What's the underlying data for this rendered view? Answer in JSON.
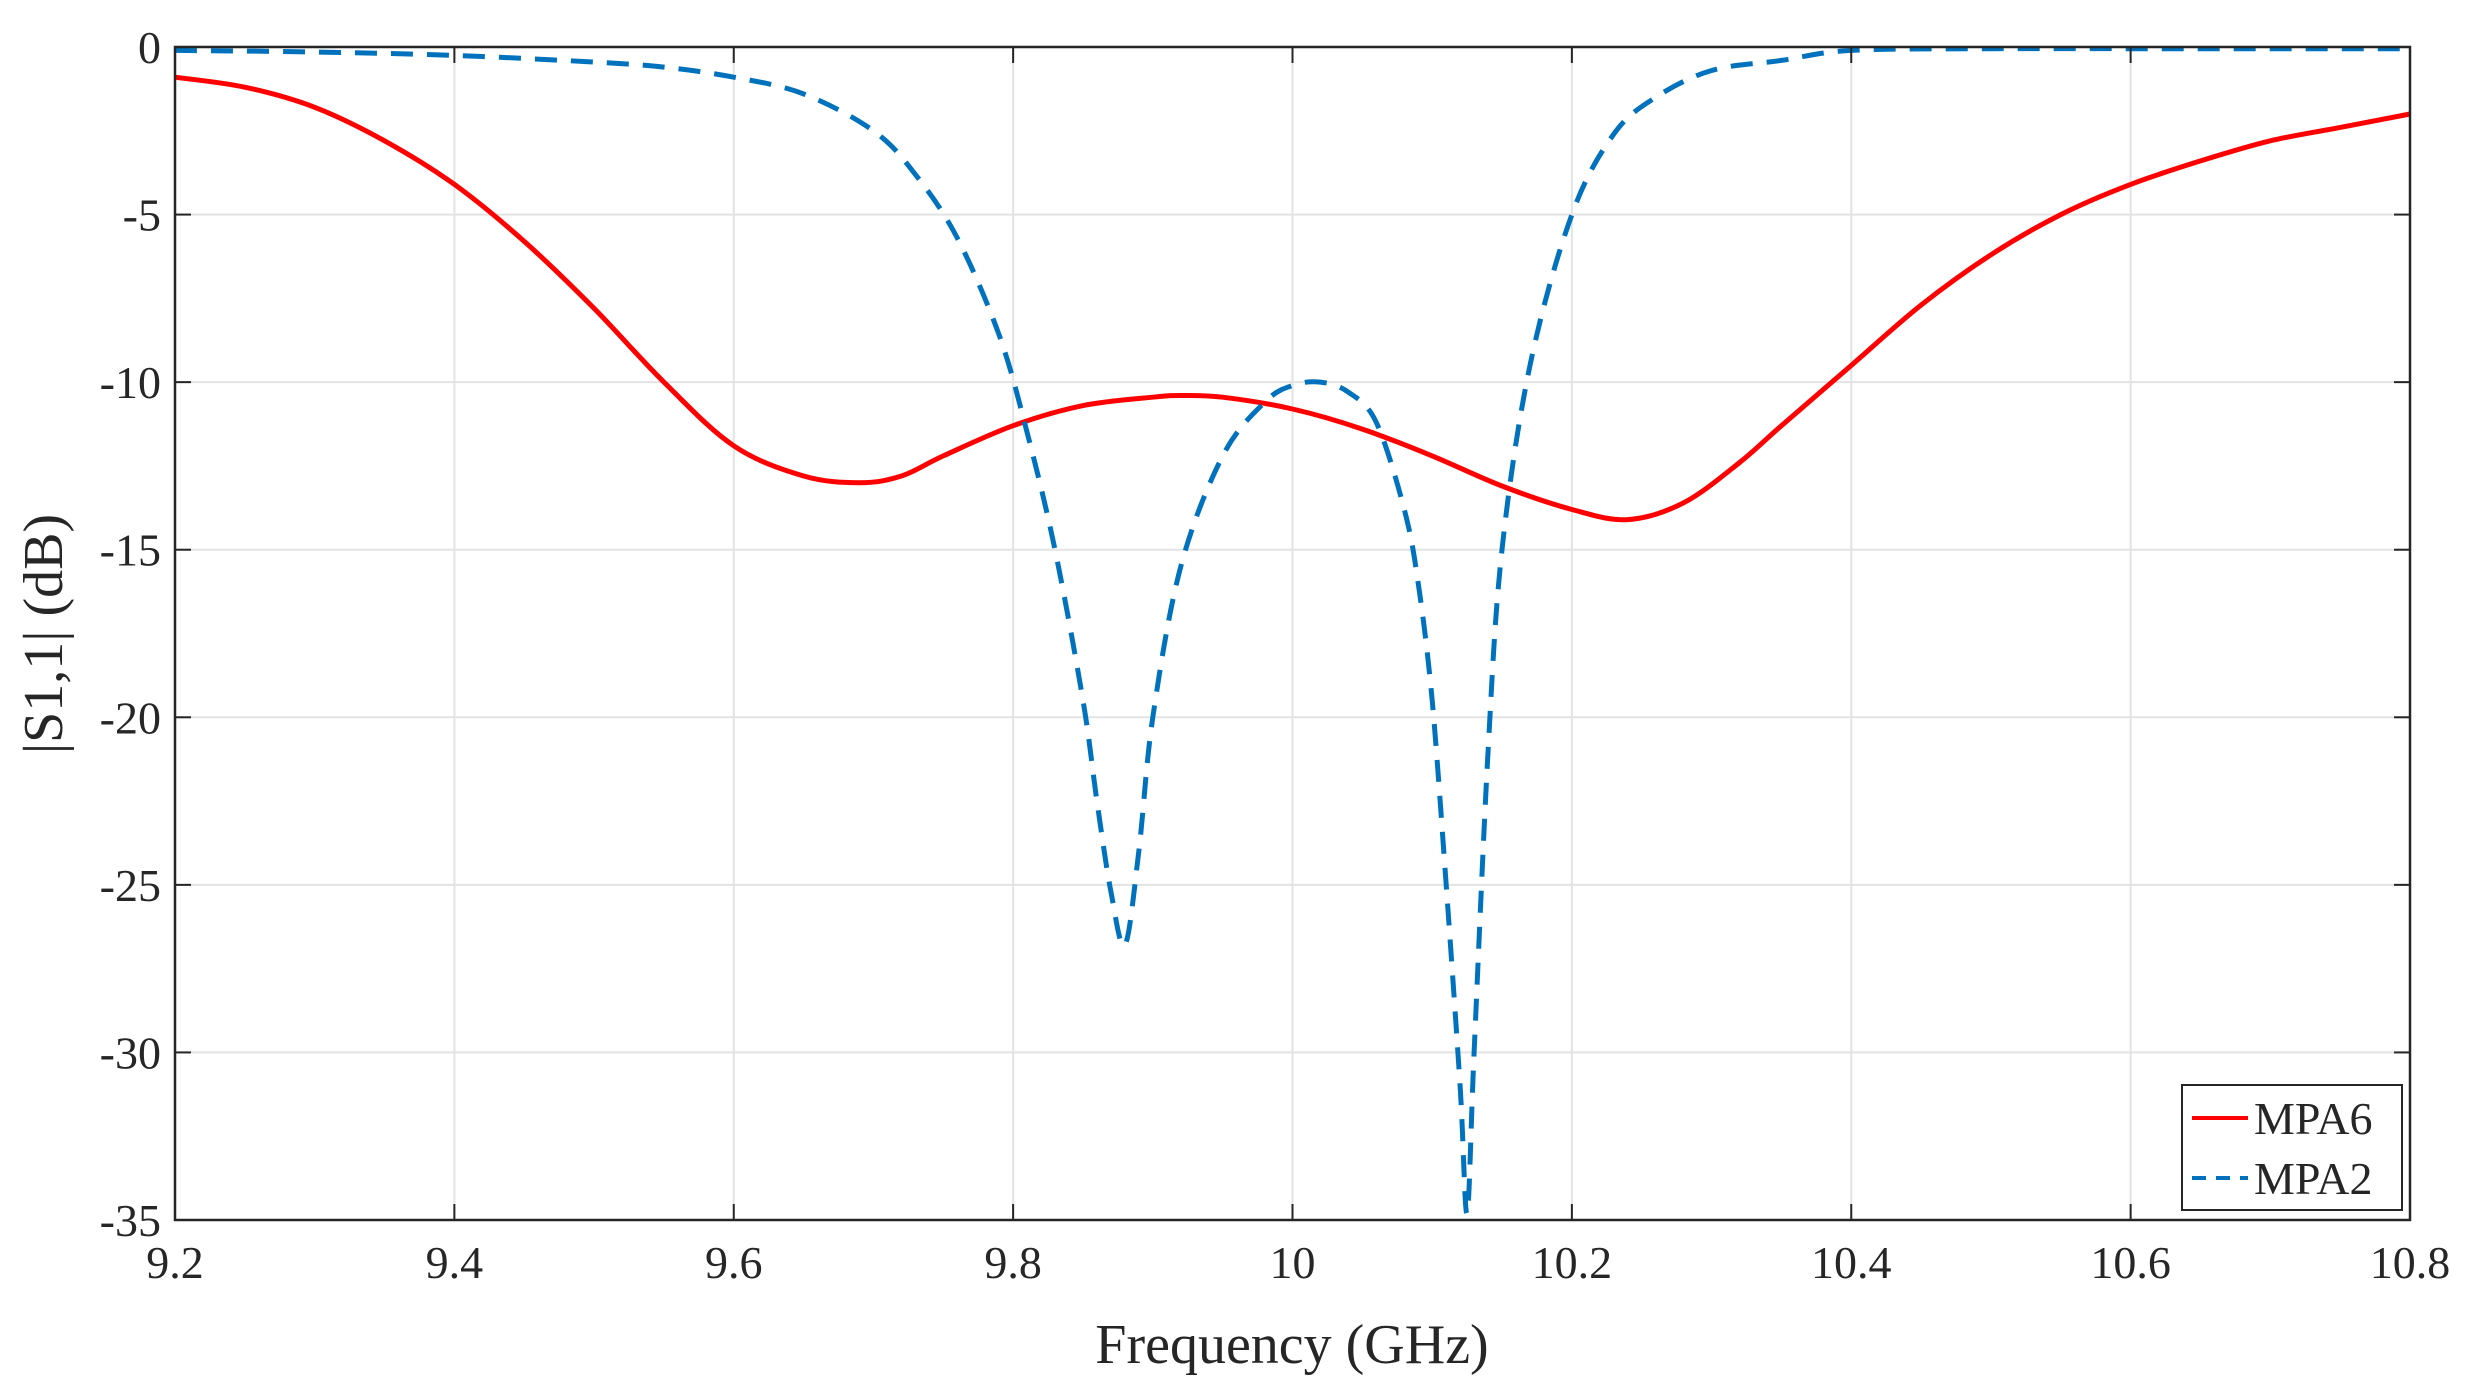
{
  "chart_data": {
    "type": "line",
    "title": "",
    "xlabel": "Frequency (GHz)",
    "ylabel": "|S1,1| (dB)",
    "xlim": [
      9.2,
      10.8
    ],
    "ylim": [
      -35,
      0
    ],
    "grid": true,
    "legend_position": "bottom-right",
    "x_ticks": [
      9.2,
      9.4,
      9.6,
      9.8,
      10,
      10.2,
      10.4,
      10.6,
      10.8
    ],
    "x_tick_labels": [
      "9.2",
      "9.4",
      "9.6",
      "9.8",
      "10",
      "10.2",
      "10.4",
      "10.6",
      "10.8"
    ],
    "y_ticks": [
      0,
      -5,
      -10,
      -15,
      -20,
      -25,
      -30,
      -35
    ],
    "y_tick_labels": [
      "0",
      "-5",
      "-10",
      "-15",
      "-20",
      "-25",
      "-30",
      "-35"
    ],
    "series": [
      {
        "name": "MPA6",
        "color": "#ff0000",
        "style": "solid",
        "x": [
          9.2,
          9.25,
          9.3,
          9.35,
          9.4,
          9.45,
          9.5,
          9.55,
          9.6,
          9.65,
          9.69,
          9.72,
          9.75,
          9.8,
          9.85,
          9.9,
          9.92,
          9.95,
          10.0,
          10.05,
          10.1,
          10.15,
          10.2,
          10.24,
          10.28,
          10.32,
          10.35,
          10.4,
          10.45,
          10.5,
          10.55,
          10.6,
          10.65,
          10.7,
          10.75,
          10.8
        ],
        "y": [
          -0.9,
          -1.2,
          -1.8,
          -2.8,
          -4.1,
          -5.8,
          -7.8,
          -10.0,
          -11.9,
          -12.8,
          -13.0,
          -12.8,
          -12.2,
          -11.3,
          -10.7,
          -10.45,
          -10.4,
          -10.45,
          -10.8,
          -11.4,
          -12.2,
          -13.1,
          -13.8,
          -14.1,
          -13.6,
          -12.4,
          -11.3,
          -9.5,
          -7.7,
          -6.2,
          -5.0,
          -4.1,
          -3.4,
          -2.8,
          -2.4,
          -2.0
        ]
      },
      {
        "name": "MPA2",
        "color": "#0072bd",
        "style": "dashed",
        "x": [
          9.2,
          9.3,
          9.4,
          9.5,
          9.55,
          9.6,
          9.65,
          9.7,
          9.73,
          9.76,
          9.79,
          9.81,
          9.83,
          9.85,
          9.86,
          9.87,
          9.88,
          9.89,
          9.9,
          9.92,
          9.95,
          9.98,
          10.0,
          10.02,
          10.04,
          10.06,
          10.08,
          10.09,
          10.1,
          10.11,
          10.12,
          10.125,
          10.13,
          10.14,
          10.15,
          10.17,
          10.2,
          10.23,
          10.26,
          10.3,
          10.35,
          10.4,
          10.5,
          10.6,
          10.7,
          10.8
        ],
        "y": [
          -0.1,
          -0.15,
          -0.25,
          -0.45,
          -0.6,
          -0.9,
          -1.4,
          -2.5,
          -3.8,
          -5.7,
          -8.6,
          -11.5,
          -15.0,
          -19.5,
          -22.5,
          -25.2,
          -26.8,
          -24.0,
          -20.0,
          -15.5,
          -12.2,
          -10.6,
          -10.1,
          -10.0,
          -10.3,
          -11.2,
          -13.8,
          -16.0,
          -19.5,
          -25.0,
          -31.0,
          -34.8,
          -30.0,
          -21.0,
          -15.0,
          -9.5,
          -5.0,
          -2.6,
          -1.5,
          -0.7,
          -0.4,
          -0.1,
          -0.05,
          -0.05,
          -0.05,
          -0.05
        ]
      }
    ]
  }
}
